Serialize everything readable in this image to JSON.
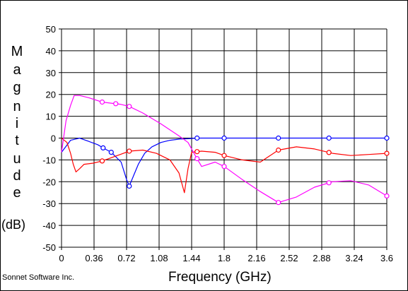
{
  "chart_data": {
    "type": "line",
    "xlabel": "Frequency (GHz)",
    "ylabel_letters": [
      "M",
      "a",
      "g",
      "n",
      "i",
      "t",
      "u",
      "d",
      "e"
    ],
    "ylabel_unit": "(dB)",
    "xlim": [
      0,
      3.6
    ],
    "ylim": [
      -50,
      50
    ],
    "x_ticks": [
      "0",
      "0.36",
      "0.72",
      "1.08",
      "1.44",
      "1.8",
      "2.16",
      "2.52",
      "2.88",
      "3.24",
      "3.6"
    ],
    "y_ticks": [
      "50",
      "40",
      "30",
      "20",
      "10",
      "0",
      "-10",
      "-20",
      "-30",
      "-40",
      "-50"
    ],
    "grid": true,
    "series": [
      {
        "color": "#0000ff",
        "x": [
          0,
          0.1,
          0.2,
          0.3,
          0.4,
          0.46,
          0.55,
          0.66,
          0.72,
          0.75,
          0.8,
          0.85,
          0.92,
          1.0,
          1.1,
          1.2,
          1.3,
          1.4,
          1.5,
          1.8,
          2.16,
          2.4,
          2.8,
          3.0,
          3.3,
          3.6
        ],
        "y": [
          -6.5,
          -1,
          0,
          -1.5,
          -3,
          -4.5,
          -6.5,
          -11,
          -19,
          -22,
          -17,
          -12,
          -7,
          -4,
          -2,
          -1,
          -0.5,
          -0.3,
          0,
          0,
          0,
          0,
          0,
          0,
          0,
          0
        ],
        "markers_x": [
          0.46,
          0.55,
          0.75,
          1.5,
          1.8,
          2.4,
          2.96,
          3.6
        ]
      },
      {
        "color": "#ff0000",
        "x": [
          0,
          0.06,
          0.1,
          0.13,
          0.16,
          0.2,
          0.25,
          0.35,
          0.45,
          0.55,
          0.65,
          0.75,
          0.9,
          1.05,
          1.2,
          1.3,
          1.36,
          1.4,
          1.44,
          1.55,
          1.7,
          1.8,
          2.0,
          2.2,
          2.4,
          2.6,
          2.8,
          3.0,
          3.2,
          3.4,
          3.6
        ],
        "y": [
          0,
          -2,
          -7,
          -12,
          -15.5,
          -14,
          -12,
          -11.5,
          -10.5,
          -9,
          -7.5,
          -6,
          -5.5,
          -7,
          -10,
          -16,
          -25,
          -14,
          -6.5,
          -6,
          -6.5,
          -8,
          -10,
          -11,
          -5.5,
          -4,
          -5,
          -7,
          -8,
          -7.5,
          -7
        ],
        "markers_x": [
          0.45,
          0.75,
          1.5,
          1.8,
          2.4,
          2.96,
          3.6
        ]
      },
      {
        "color": "#ff00ff",
        "x": [
          0,
          0.05,
          0.1,
          0.14,
          0.2,
          0.3,
          0.45,
          0.55,
          0.65,
          0.75,
          0.9,
          1.1,
          1.3,
          1.4,
          1.44,
          1.48,
          1.55,
          1.7,
          1.8,
          2.0,
          2.2,
          2.4,
          2.6,
          2.8,
          3.0,
          3.2,
          3.4,
          3.6
        ],
        "y": [
          -6.5,
          8,
          15,
          19.5,
          19.5,
          18.5,
          16.5,
          16,
          15.5,
          14.5,
          11.5,
          6.5,
          1,
          -2,
          -5,
          -8,
          -13,
          -11,
          -13,
          -19,
          -24.5,
          -29.5,
          -27,
          -22.5,
          -20,
          -19.5,
          -21.5,
          -26.5
        ],
        "markers_x": [
          0.45,
          0.6,
          0.75,
          1.5,
          1.8,
          2.4,
          2.96,
          3.6
        ]
      }
    ]
  },
  "footer": "Sonnet Software Inc."
}
